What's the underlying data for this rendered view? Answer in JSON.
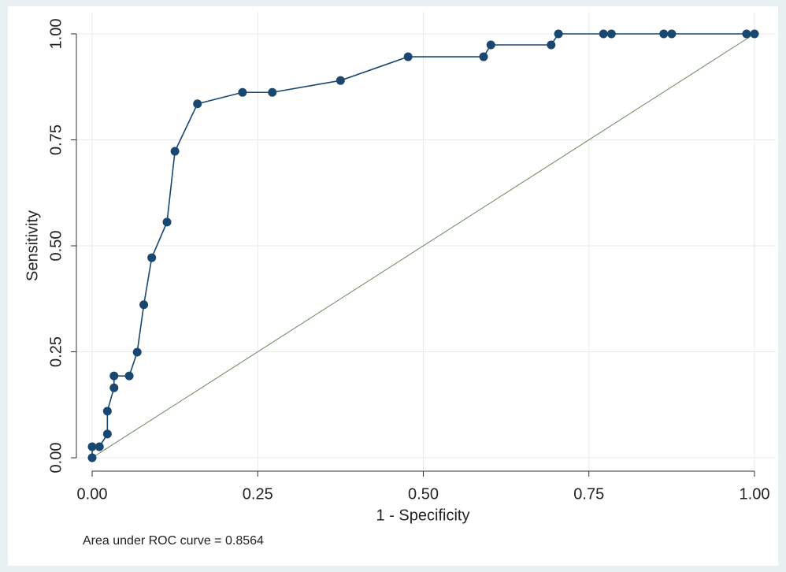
{
  "chart_data": {
    "type": "line",
    "x_label": "1 - Specificity",
    "y_label": "Sensitivity",
    "note": "Area under ROC curve = 0.8564",
    "xlim": [
      0,
      1
    ],
    "ylim": [
      0,
      1
    ],
    "xticks": [
      {
        "value": 0,
        "label": "0.00"
      },
      {
        "value": 0.25,
        "label": "0.25"
      },
      {
        "value": 0.5,
        "label": "0.50"
      },
      {
        "value": 0.75,
        "label": "0.75"
      },
      {
        "value": 1,
        "label": "1.00"
      }
    ],
    "yticks": [
      {
        "value": 0,
        "label": "0.00"
      },
      {
        "value": 0.25,
        "label": "0.25"
      },
      {
        "value": 0.5,
        "label": "0.50"
      },
      {
        "value": 0.75,
        "label": "0.75"
      },
      {
        "value": 1,
        "label": "1.00"
      }
    ],
    "grid": true,
    "series": [
      {
        "color": "#1a476f",
        "markers": true,
        "x": [
          0,
          0,
          0.011,
          0.023,
          0.023,
          0.033,
          0.033,
          0.056,
          0.068,
          0.078,
          0.09,
          0.113,
          0.125,
          0.159,
          0.227,
          0.272,
          0.375,
          0.477,
          0.591,
          0.602,
          0.693,
          0.704,
          0.772,
          0.784,
          0.863,
          0.875,
          0.988,
          1
        ],
        "values": [
          0,
          0.026,
          0.026,
          0.056,
          0.11,
          0.165,
          0.193,
          0.193,
          0.249,
          0.361,
          0.472,
          0.556,
          0.723,
          0.835,
          0.862,
          0.862,
          0.89,
          0.946,
          0.946,
          0.974,
          0.974,
          1,
          1,
          1,
          1,
          1,
          1,
          1
        ]
      },
      {
        "color": "#6f8a62",
        "markers": false,
        "x": [
          0,
          1
        ],
        "values": [
          0,
          1
        ]
      }
    ]
  }
}
